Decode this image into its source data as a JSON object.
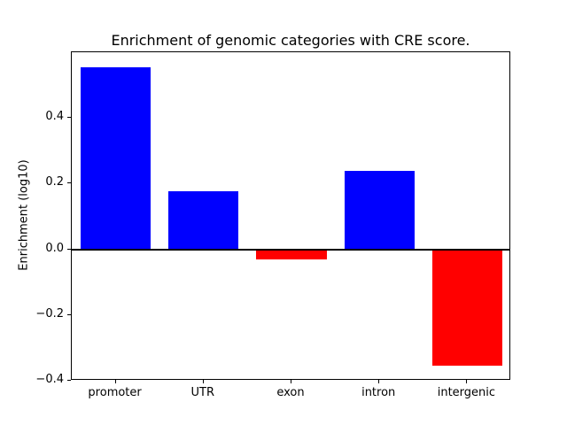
{
  "figure": {
    "title": "Enrichment of genomic categories with CRE score.",
    "ylabel": "Enrichment (log10)"
  },
  "chart_data": {
    "type": "bar",
    "title": "Enrichment of genomic categories with CRE score.",
    "xlabel": "",
    "ylabel": "Enrichment (log10)",
    "categories": [
      "promoter",
      "UTR",
      "exon",
      "intron",
      "intergenic"
    ],
    "values": [
      0.555,
      0.178,
      -0.032,
      0.238,
      -0.355
    ],
    "bar_colors": [
      "#0000ff",
      "#0000ff",
      "#ff0000",
      "#0000ff",
      "#ff0000"
    ],
    "positive_color": "#0000ff",
    "negative_color": "#ff0000",
    "ylim": [
      -0.4,
      0.6
    ],
    "yticks": [
      -0.4,
      -0.2,
      0.0,
      0.2,
      0.4
    ],
    "ytick_labels": [
      "−0.4",
      "−0.2",
      "0.0",
      "0.2",
      "0.4"
    ],
    "grid": false,
    "legend": null,
    "zero_line": true,
    "bar_width_fraction": 0.8,
    "background_color": "#ffffff",
    "axis_color": "#000000"
  }
}
